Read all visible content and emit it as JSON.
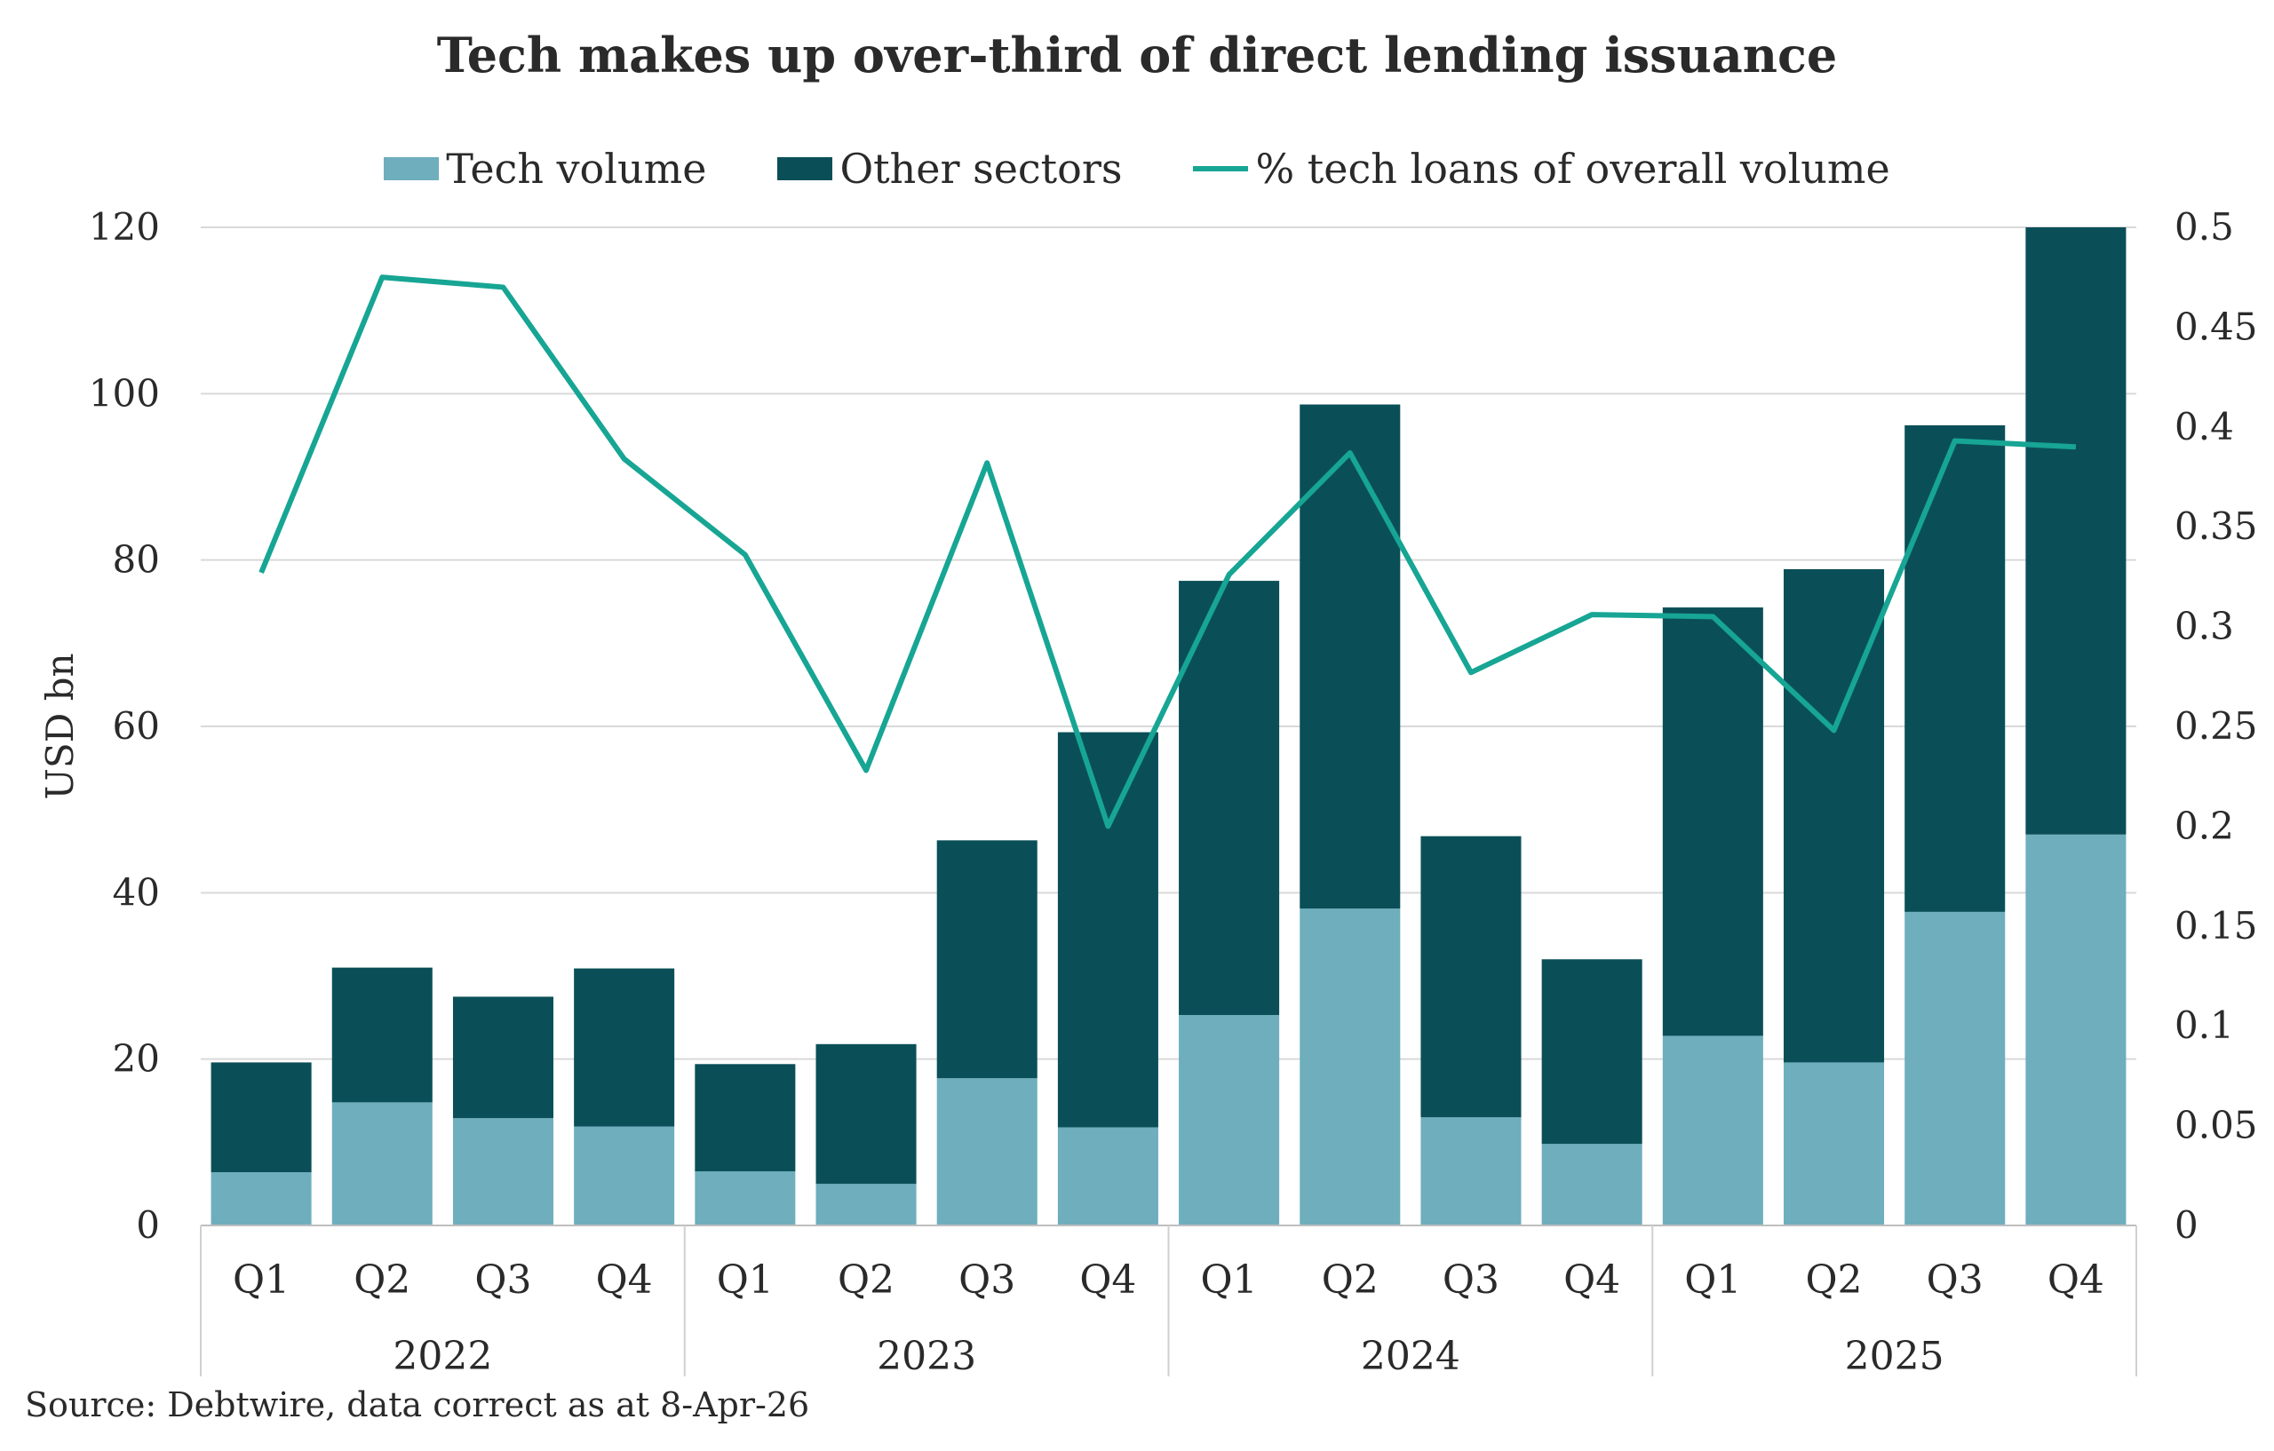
{
  "chart_data": {
    "type": "bar",
    "title": "Tech makes up over-third of direct lending issuance",
    "ylabel": "USD bn",
    "ylim": [
      0,
      120
    ],
    "y_ticks": [
      "0",
      "20",
      "40",
      "60",
      "80",
      "100",
      "120"
    ],
    "y2lim": [
      0,
      0.5
    ],
    "y2_ticks": [
      "0",
      "0.05",
      "0.1",
      "0.15",
      "0.2",
      "0.25",
      "0.3",
      "0.35",
      "0.4",
      "0.45",
      "0.5"
    ],
    "categories": [
      "Q1",
      "Q2",
      "Q3",
      "Q4",
      "Q1",
      "Q2",
      "Q3",
      "Q4",
      "Q1",
      "Q2",
      "Q3",
      "Q4",
      "Q1",
      "Q2",
      "Q3",
      "Q4"
    ],
    "groups": [
      "2022",
      "2023",
      "2024",
      "2025"
    ],
    "legend_position": "top",
    "grid": true,
    "series": [
      {
        "name": "Tech volume",
        "kind": "bar",
        "color": "#6eaebd",
        "values": [
          6.4,
          14.8,
          12.9,
          11.9,
          6.5,
          5.0,
          17.7,
          11.8,
          25.3,
          38.1,
          13.0,
          9.8,
          22.8,
          19.6,
          37.7,
          47.0
        ]
      },
      {
        "name": "Other sectors",
        "kind": "bar",
        "color": "#0a4f57",
        "values": [
          13.2,
          16.2,
          14.6,
          19.0,
          12.9,
          16.8,
          28.6,
          47.5,
          52.2,
          60.6,
          33.8,
          22.2,
          51.5,
          59.3,
          58.5,
          73.0
        ]
      },
      {
        "name": "% tech loans of overall volume",
        "kind": "line",
        "axis": "right",
        "color": "#17a594",
        "values": [
          0.327,
          0.475,
          0.47,
          0.384,
          0.336,
          0.228,
          0.382,
          0.2,
          0.326,
          0.387,
          0.277,
          0.306,
          0.305,
          0.248,
          0.393,
          0.39
        ]
      }
    ]
  },
  "source": "Source: Debtwire, data correct as at 8-Apr-26"
}
